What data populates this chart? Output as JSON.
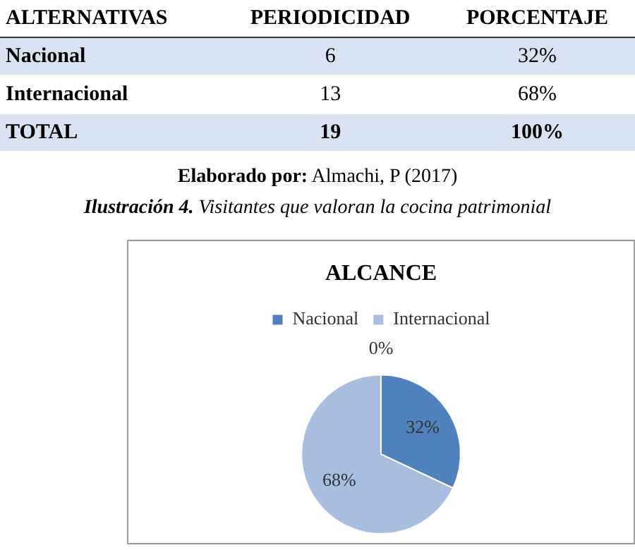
{
  "chart_data": {
    "type": "pie",
    "title": "ALCANCE",
    "categories": [
      "Nacional",
      "Internacional",
      null
    ],
    "values": [
      32,
      68,
      0
    ],
    "colors": [
      "#4f81bd",
      "#a9bde0",
      "#c0504d"
    ],
    "value_labels": [
      "32%",
      "68%",
      "0%"
    ],
    "legend": "top",
    "annotations": [
      "ALTERNATIVAS",
      "PERIODICIDAD",
      "PORCENTAJE",
      "Nacional",
      "6",
      "32%",
      "Internacional",
      "13",
      "68%",
      "TOTAL",
      "19",
      "100%",
      "Elaborado por: Almachi, P  (2017)",
      "Ilustración 4. Visitantes que valoran la cocina patrimonial"
    ]
  }
}
